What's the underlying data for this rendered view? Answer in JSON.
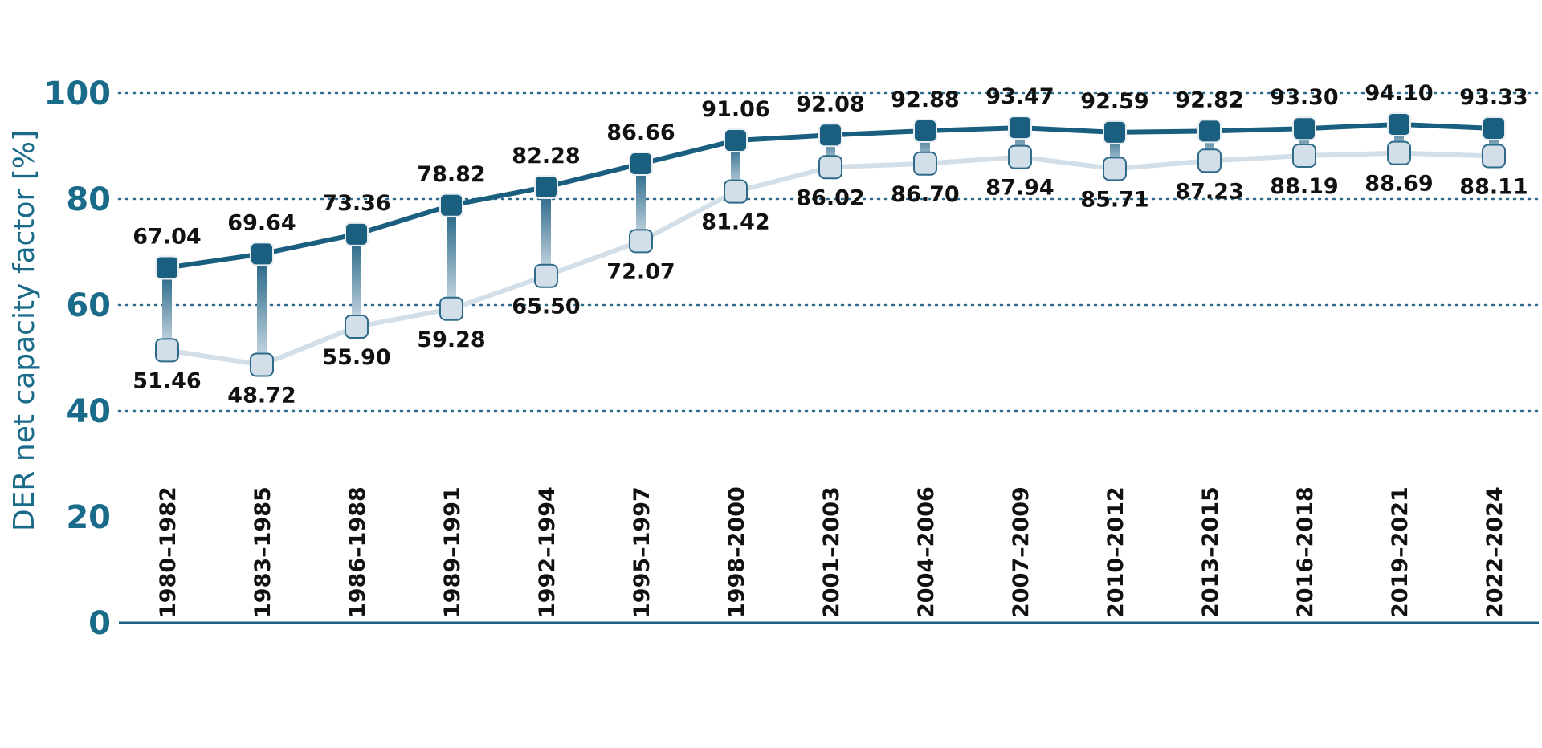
{
  "colors": {
    "accent": "#1a5e80",
    "light_series": "#d3dfe8",
    "marker_outline": "#2e6a8a",
    "axis_text": "#1a6a8a",
    "grid": "#2e6a8a"
  },
  "chart_data": {
    "type": "line",
    "title": "",
    "xlabel": "",
    "ylabel": "DER net capacity factor [%]",
    "ylim": [
      0,
      100
    ],
    "yticks": [
      0,
      20,
      40,
      60,
      80,
      100
    ],
    "grid": "horizontal-dotted",
    "categories": [
      "1980–1982",
      "1983–1985",
      "1986–1988",
      "1989–1991",
      "1992–1994",
      "1995–1997",
      "1998–2000",
      "2001–2003",
      "2004–2006",
      "2007–2009",
      "2010–2012",
      "2013–2015",
      "2016–2018",
      "2019–2021",
      "2022–2024"
    ],
    "series": [
      {
        "values": [
          67.04,
          69.64,
          73.36,
          78.82,
          82.28,
          86.66,
          91.06,
          92.08,
          92.88,
          93.47,
          92.59,
          92.82,
          93.3,
          94.1,
          93.33
        ],
        "labels": [
          "67.04",
          "69.64",
          "73.36",
          "78.82",
          "82.28",
          "86.66",
          "91.06",
          "92.08",
          "92.88",
          "93.47",
          "92.59",
          "92.82",
          "93.30",
          "94.10",
          "93.33"
        ]
      },
      {
        "values": [
          51.46,
          48.72,
          55.9,
          59.28,
          65.5,
          72.07,
          81.42,
          86.02,
          86.7,
          87.94,
          85.71,
          87.23,
          88.19,
          88.69,
          88.11
        ],
        "labels": [
          "51.46",
          "48.72",
          "55.90",
          "59.28",
          "65.50",
          "72.07",
          "81.42",
          "86.02",
          "86.70",
          "87.94",
          "85.71",
          "87.23",
          "88.19",
          "88.69",
          "88.11"
        ]
      }
    ]
  }
}
